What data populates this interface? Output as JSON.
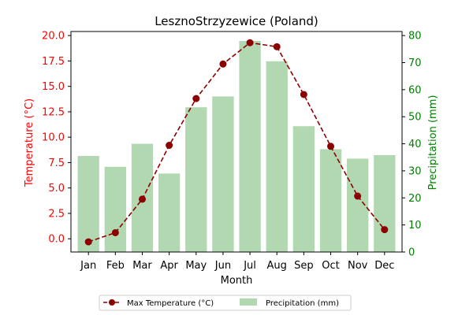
{
  "chart_data": {
    "type": "bar+line",
    "title": "LesznoStrzyzewice (Poland)",
    "xlabel": "Month",
    "ylabel_left": "Temperature (°C)",
    "ylabel_right": "Precipitation (mm)",
    "categories": [
      "Jan",
      "Feb",
      "Mar",
      "Apr",
      "May",
      "Jun",
      "Jul",
      "Aug",
      "Sep",
      "Oct",
      "Nov",
      "Dec"
    ],
    "ylim_left": [
      -1.3,
      20.4
    ],
    "ylim_right": [
      0,
      81.5
    ],
    "yticks_left": [
      0.0,
      2.5,
      5.0,
      7.5,
      10.0,
      12.5,
      15.0,
      17.5,
      20.0
    ],
    "ytick_labels_left": [
      "0.0",
      "2.5",
      "5.0",
      "7.5",
      "10.0",
      "12.5",
      "15.0",
      "17.5",
      "20.0"
    ],
    "yticks_right": [
      0,
      10,
      20,
      30,
      40,
      50,
      60,
      70,
      80
    ],
    "ytick_labels_right": [
      "0",
      "10",
      "20",
      "30",
      "40",
      "50",
      "60",
      "70",
      "80"
    ],
    "series": [
      {
        "name": "Max Temperature (°C)",
        "type": "line",
        "axis": "left",
        "color": "#8b0000",
        "values": [
          -0.3,
          0.6,
          3.9,
          9.2,
          13.8,
          17.2,
          19.3,
          18.9,
          14.2,
          9.1,
          4.2,
          0.9
        ]
      },
      {
        "name": "Precipitation (mm)",
        "type": "bar",
        "axis": "right",
        "color": "#b2d8b2",
        "values": [
          35.5,
          31.5,
          40.0,
          29.0,
          53.5,
          57.5,
          78.0,
          70.5,
          46.5,
          38.0,
          34.5,
          35.8
        ]
      }
    ],
    "colors": {
      "left_axis": "#ff0000",
      "right_axis": "#008000"
    },
    "legend_position": "bottom-center",
    "grid": false
  }
}
